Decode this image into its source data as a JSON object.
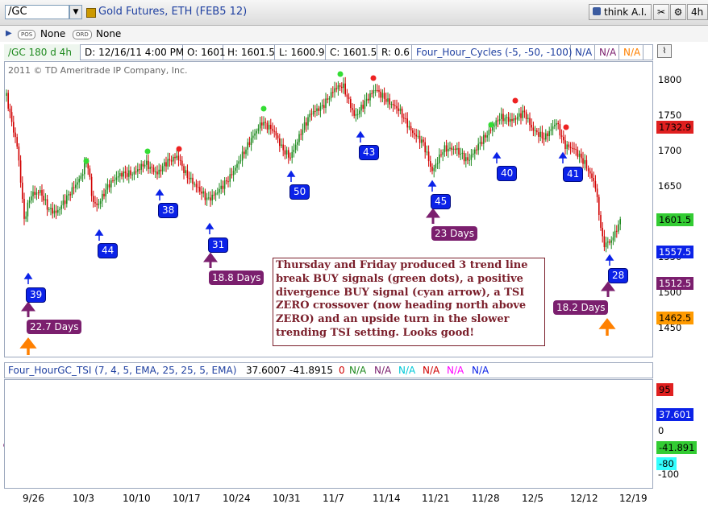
{
  "toolbar": {
    "symbol": "/GC",
    "title": "Gold Futures, ETH (FEB5 12)",
    "think_ai": "think A.I.",
    "timeframe": "4h"
  },
  "row2": {
    "pos_label": "POS",
    "pos_value": "None",
    "ord_label": "ORD",
    "ord_value": "None"
  },
  "infobar": {
    "chart": "/GC 180 d 4h",
    "date": "D: 12/16/11 4:00 PM",
    "open": "O: 1601",
    "high": "H: 1601.5",
    "low": "L: 1600.9",
    "close": "C: 1601.5",
    "range": "R: 0.6",
    "study": "Four_Hour_Cycles (-5, -50, -100)",
    "na1": "N/A",
    "na2": "N/A",
    "na3": "N/A"
  },
  "copyright": "2011 © TD Ameritrade IP Company, Inc.",
  "price_axis": [
    "1800",
    "1750",
    "1700",
    "1650",
    "1600",
    "1550",
    "1500",
    "1450"
  ],
  "price_tags": {
    "red": "1732.9",
    "green": "1601.5",
    "blue": "1557.5",
    "purple": "1512.5",
    "orange": "1462.5"
  },
  "cycle_labels": [
    "39",
    "44",
    "38",
    "31",
    "50",
    "43",
    "45",
    "40",
    "41",
    "28"
  ],
  "duration_labels": [
    "22.7 Days",
    "18.8 Days",
    "23 Days",
    "18.2 Days"
  ],
  "note": "Thursday and Friday produced 3 trend line break BUY signals (green dots), a positive divergence BUY signal (cyan arrow), a TSI ZERO crossover (now heading north above ZERO) and an upside turn in the slower trending TSI setting. Looks good!",
  "tsi_bar": {
    "study": "Four_HourGC_TSI (7, 4, 5, EMA, 25, 25, 5, EMA)",
    "v1": "37.6007",
    "v2": "-41.8915",
    "v3": "0",
    "na": [
      "N/A",
      "N/A",
      "N/A",
      "N/A",
      "N/A",
      "N/A"
    ]
  },
  "tsi_axis": {
    "a95": "95",
    "a0": "0",
    "a_minus100": "-100"
  },
  "tsi_tags": {
    "red": "95",
    "blue": "37.601",
    "green": "-41.891",
    "cyan": "-80"
  },
  "x_axis": [
    "9/26",
    "10/3",
    "10/10",
    "10/17",
    "10/24",
    "10/31",
    "11/7",
    "11/14",
    "11/21",
    "11/28",
    "12/5",
    "12/12",
    "12/19"
  ],
  "colors": {
    "up": "#1f8a1f",
    "down": "#d10000",
    "blue_label": "#0b22e8",
    "purple_label": "#7b1f6e",
    "note_text": "#7a1e2a",
    "orange_arrow": "#ff8000"
  }
}
